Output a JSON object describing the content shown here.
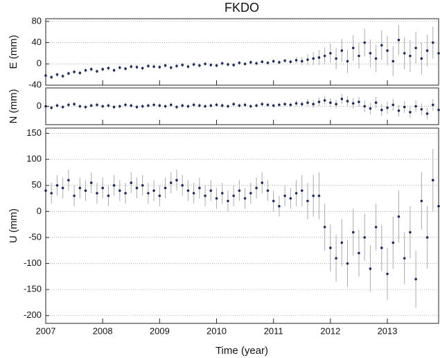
{
  "chart_data": [
    {
      "type": "scatter",
      "title": "FKDO",
      "ylabel": "E (mm)",
      "x": [
        2007.0,
        2007.1,
        2007.2,
        2007.3,
        2007.4,
        2007.5,
        2007.6,
        2007.7,
        2007.8,
        2007.9,
        2008.0,
        2008.1,
        2008.2,
        2008.3,
        2008.4,
        2008.5,
        2008.6,
        2008.7,
        2008.8,
        2008.9,
        2009.0,
        2009.1,
        2009.2,
        2009.3,
        2009.4,
        2009.5,
        2009.6,
        2009.7,
        2009.8,
        2009.9,
        2010.0,
        2010.1,
        2010.2,
        2010.3,
        2010.4,
        2010.5,
        2010.6,
        2010.7,
        2010.8,
        2010.9,
        2011.0,
        2011.1,
        2011.2,
        2011.3,
        2011.4,
        2011.5,
        2011.6,
        2011.7,
        2011.8,
        2011.9,
        2012.0,
        2012.1,
        2012.2,
        2012.3,
        2012.4,
        2012.5,
        2012.6,
        2012.7,
        2012.8,
        2012.9,
        2013.0,
        2013.1,
        2013.2,
        2013.3,
        2013.4,
        2013.5,
        2013.6,
        2013.7,
        2013.8,
        2013.9
      ],
      "values": [
        -22,
        -25,
        -20,
        -23,
        -18,
        -15,
        -17,
        -12,
        -10,
        -14,
        -10,
        -8,
        -12,
        -7,
        -9,
        -5,
        -6,
        -8,
        -4,
        -5,
        -6,
        -3,
        -7,
        -4,
        -2,
        -5,
        -1,
        -3,
        0,
        -2,
        -3,
        1,
        -1,
        -2,
        2,
        0,
        3,
        1,
        4,
        2,
        5,
        3,
        6,
        4,
        7,
        5,
        8,
        10,
        12,
        15,
        20,
        10,
        25,
        5,
        30,
        15,
        40,
        20,
        10,
        35,
        25,
        5,
        45,
        20,
        15,
        30,
        10,
        25,
        40,
        20
      ],
      "errors": [
        4,
        4,
        4,
        4,
        4,
        4,
        4,
        4,
        4,
        4,
        4,
        4,
        4,
        4,
        4,
        4,
        4,
        4,
        4,
        4,
        4,
        4,
        4,
        4,
        4,
        4,
        4,
        4,
        4,
        4,
        4,
        4,
        4,
        4,
        4,
        4,
        4,
        4,
        4,
        4,
        4,
        4,
        4,
        4,
        6,
        8,
        10,
        12,
        14,
        16,
        18,
        20,
        22,
        22,
        24,
        24,
        26,
        26,
        26,
        28,
        28,
        28,
        28,
        30,
        30,
        30,
        30,
        30,
        30,
        30
      ],
      "color": "#1f2a5a",
      "error_color": "#aaaaaa",
      "xlim": [
        2007,
        2013.9
      ],
      "ylim": [
        -40,
        85
      ],
      "yticks": [
        -40,
        0,
        40,
        80
      ],
      "xticks": [
        2007,
        2008,
        2009,
        2010,
        2011,
        2012,
        2013
      ],
      "grid": true
    },
    {
      "type": "scatter",
      "ylabel": "N (mm)",
      "x": [
        2007.0,
        2007.1,
        2007.2,
        2007.3,
        2007.4,
        2007.5,
        2007.6,
        2007.7,
        2007.8,
        2007.9,
        2008.0,
        2008.1,
        2008.2,
        2008.3,
        2008.4,
        2008.5,
        2008.6,
        2008.7,
        2008.8,
        2008.9,
        2009.0,
        2009.1,
        2009.2,
        2009.3,
        2009.4,
        2009.5,
        2009.6,
        2009.7,
        2009.8,
        2009.9,
        2010.0,
        2010.1,
        2010.2,
        2010.3,
        2010.4,
        2010.5,
        2010.6,
        2010.7,
        2010.8,
        2010.9,
        2011.0,
        2011.1,
        2011.2,
        2011.3,
        2011.4,
        2011.5,
        2011.6,
        2011.7,
        2011.8,
        2011.9,
        2012.0,
        2012.1,
        2012.2,
        2012.3,
        2012.4,
        2012.5,
        2012.6,
        2012.7,
        2012.8,
        2012.9,
        2013.0,
        2013.1,
        2013.2,
        2013.3,
        2013.4,
        2013.5,
        2013.6,
        2013.7,
        2013.8,
        2013.9
      ],
      "values": [
        0,
        -2,
        1,
        -1,
        2,
        3,
        0,
        -1,
        1,
        2,
        0,
        1,
        -1,
        0,
        2,
        1,
        -1,
        0,
        1,
        2,
        1,
        0,
        2,
        -1,
        1,
        0,
        2,
        1,
        0,
        1,
        2,
        1,
        0,
        3,
        1,
        2,
        0,
        1,
        3,
        2,
        1,
        2,
        3,
        2,
        4,
        3,
        5,
        3,
        6,
        8,
        5,
        3,
        10,
        7,
        4,
        6,
        0,
        -3,
        5,
        -5,
        -2,
        2,
        -6,
        -1,
        -8,
        0,
        -4,
        -10,
        2,
        -5
      ],
      "errors": [
        3,
        3,
        3,
        3,
        3,
        3,
        3,
        3,
        3,
        3,
        3,
        3,
        3,
        3,
        3,
        3,
        3,
        3,
        3,
        3,
        3,
        3,
        3,
        3,
        3,
        3,
        3,
        3,
        3,
        3,
        3,
        3,
        3,
        3,
        3,
        3,
        3,
        3,
        3,
        3,
        3,
        3,
        3,
        3,
        4,
        4,
        5,
        5,
        6,
        6,
        6,
        6,
        7,
        7,
        7,
        7,
        8,
        8,
        8,
        8,
        8,
        8,
        8,
        8,
        8,
        8,
        8,
        8,
        8,
        8
      ],
      "color": "#1f2a5a",
      "error_color": "#aaaaaa",
      "xlim": [
        2007,
        2013.9
      ],
      "ylim": [
        -25,
        25
      ],
      "yticks": [
        0
      ],
      "xticks": [
        2007,
        2008,
        2009,
        2010,
        2011,
        2012,
        2013
      ],
      "grid": true
    },
    {
      "type": "scatter",
      "ylabel": "U (mm)",
      "xlabel": "Time (year)",
      "x": [
        2007.0,
        2007.1,
        2007.2,
        2007.3,
        2007.4,
        2007.5,
        2007.6,
        2007.7,
        2007.8,
        2007.9,
        2008.0,
        2008.1,
        2008.2,
        2008.3,
        2008.4,
        2008.5,
        2008.6,
        2008.7,
        2008.8,
        2008.9,
        2009.0,
        2009.1,
        2009.2,
        2009.3,
        2009.4,
        2009.5,
        2009.6,
        2009.7,
        2009.8,
        2009.9,
        2010.0,
        2010.1,
        2010.2,
        2010.3,
        2010.4,
        2010.5,
        2010.6,
        2010.7,
        2010.8,
        2010.9,
        2011.0,
        2011.1,
        2011.2,
        2011.3,
        2011.4,
        2011.5,
        2011.6,
        2011.7,
        2011.8,
        2011.9,
        2012.0,
        2012.1,
        2012.2,
        2012.3,
        2012.4,
        2012.5,
        2012.6,
        2012.7,
        2012.8,
        2012.9,
        2013.0,
        2013.1,
        2013.2,
        2013.3,
        2013.4,
        2013.5,
        2013.6,
        2013.7,
        2013.8,
        2013.9
      ],
      "values": [
        40,
        35,
        50,
        45,
        60,
        30,
        45,
        40,
        55,
        35,
        45,
        30,
        50,
        40,
        35,
        55,
        45,
        50,
        35,
        40,
        30,
        45,
        55,
        60,
        50,
        40,
        35,
        45,
        30,
        40,
        25,
        35,
        20,
        30,
        40,
        25,
        35,
        45,
        55,
        40,
        20,
        10,
        30,
        25,
        35,
        40,
        20,
        30,
        30,
        -30,
        -70,
        -90,
        -60,
        -100,
        -40,
        -80,
        -50,
        -110,
        -30,
        -70,
        -120,
        -60,
        -10,
        -90,
        -40,
        -130,
        20,
        -50,
        60,
        10
      ],
      "errors": [
        20,
        20,
        20,
        20,
        20,
        20,
        20,
        20,
        20,
        20,
        20,
        20,
        20,
        20,
        20,
        20,
        20,
        20,
        20,
        20,
        20,
        20,
        20,
        20,
        20,
        20,
        20,
        20,
        20,
        20,
        20,
        20,
        20,
        20,
        20,
        20,
        20,
        20,
        20,
        20,
        20,
        20,
        20,
        20,
        25,
        30,
        35,
        40,
        45,
        45,
        45,
        45,
        45,
        45,
        45,
        45,
        45,
        45,
        45,
        45,
        50,
        50,
        50,
        50,
        50,
        55,
        55,
        60,
        60,
        60
      ],
      "color": "#1f2a5a",
      "error_color": "#aaaaaa",
      "xlim": [
        2007,
        2013.9
      ],
      "ylim": [
        -215,
        160
      ],
      "yticks": [
        -200,
        -150,
        -100,
        -50,
        0,
        50,
        100,
        150
      ],
      "xticks": [
        2007,
        2008,
        2009,
        2010,
        2011,
        2012,
        2013
      ],
      "grid": true
    }
  ]
}
